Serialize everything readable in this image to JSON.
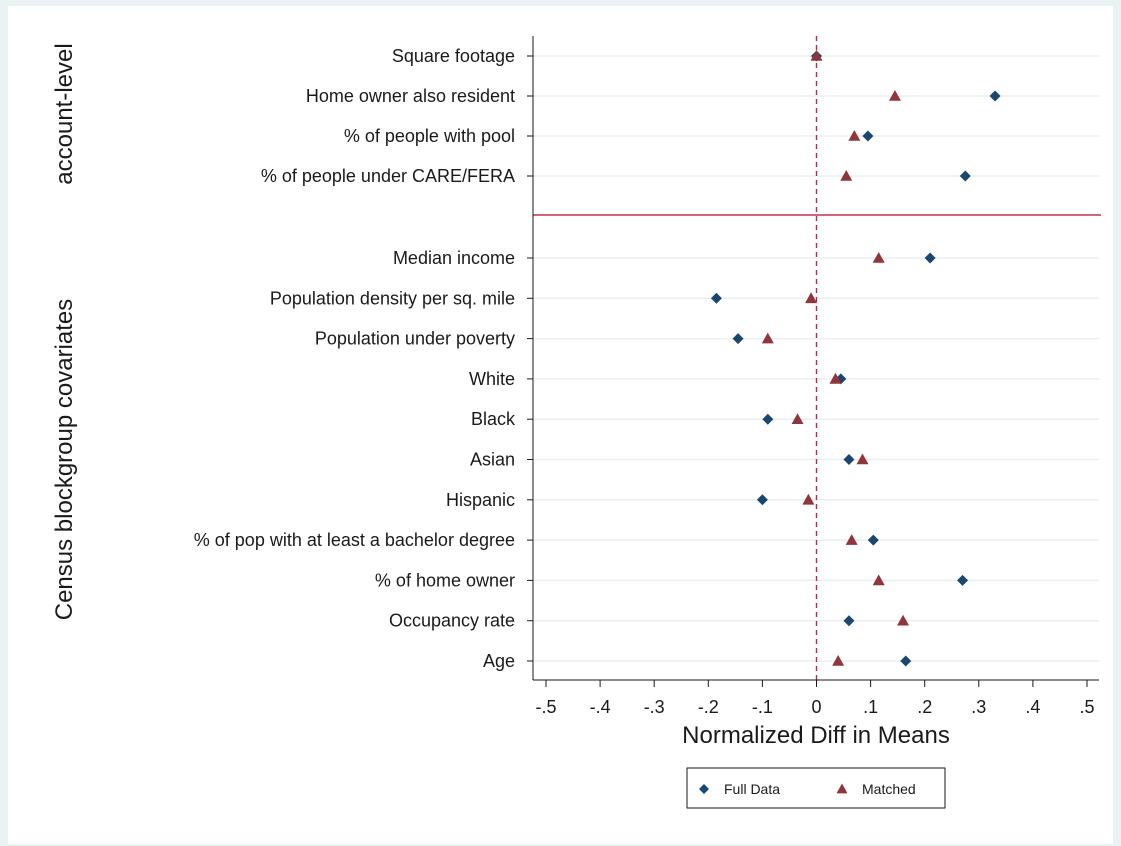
{
  "chart_data": {
    "type": "scatter",
    "xlabel": "Normalized Diff in Means",
    "xlim": [
      -0.5,
      0.5
    ],
    "xticks": [
      -0.5,
      -0.4,
      -0.3,
      -0.2,
      -0.1,
      0,
      0.1,
      0.2,
      0.3,
      0.4,
      0.5
    ],
    "xtick_labels": [
      "-.5",
      "-.4",
      "-.3",
      "-.2",
      "-.1",
      "0",
      ".1",
      ".2",
      ".3",
      ".4",
      ".5"
    ],
    "reference_line_x": 0,
    "legend_position": "bottom-center",
    "groups": [
      {
        "label": "account-level",
        "start": 0,
        "end": 3
      },
      {
        "label": "Census blockgroup covariates",
        "start": 4,
        "end": 14
      }
    ],
    "categories": [
      "Square footage",
      "Home owner also resident",
      "% of people with pool",
      "% of people under CARE/FERA",
      "Median income",
      "Population density per sq. mile",
      "Population under poverty",
      "White",
      "Black",
      "Asian",
      "Hispanic",
      "% of pop with at least a bachelor degree",
      "% of home owner",
      "Occupancy rate",
      "Age"
    ],
    "series": [
      {
        "name": "Full Data",
        "marker": "diamond",
        "color": "#1a476f",
        "values": [
          0.0,
          0.33,
          0.095,
          0.275,
          0.21,
          -0.185,
          -0.145,
          0.045,
          -0.09,
          0.06,
          -0.1,
          0.105,
          0.27,
          0.06,
          0.165
        ]
      },
      {
        "name": "Matched",
        "marker": "triangle",
        "color": "#90353b",
        "values": [
          0.0,
          0.145,
          0.07,
          0.055,
          0.115,
          -0.01,
          -0.09,
          0.035,
          -0.035,
          0.085,
          -0.015,
          0.065,
          0.115,
          0.16,
          0.04
        ]
      }
    ],
    "colors": {
      "background": "#eaf2f3",
      "plot_background": "#ffffff",
      "grid": "#e9eff0",
      "reference_line": "#b2294b",
      "group_separator": "#c2334f"
    }
  }
}
